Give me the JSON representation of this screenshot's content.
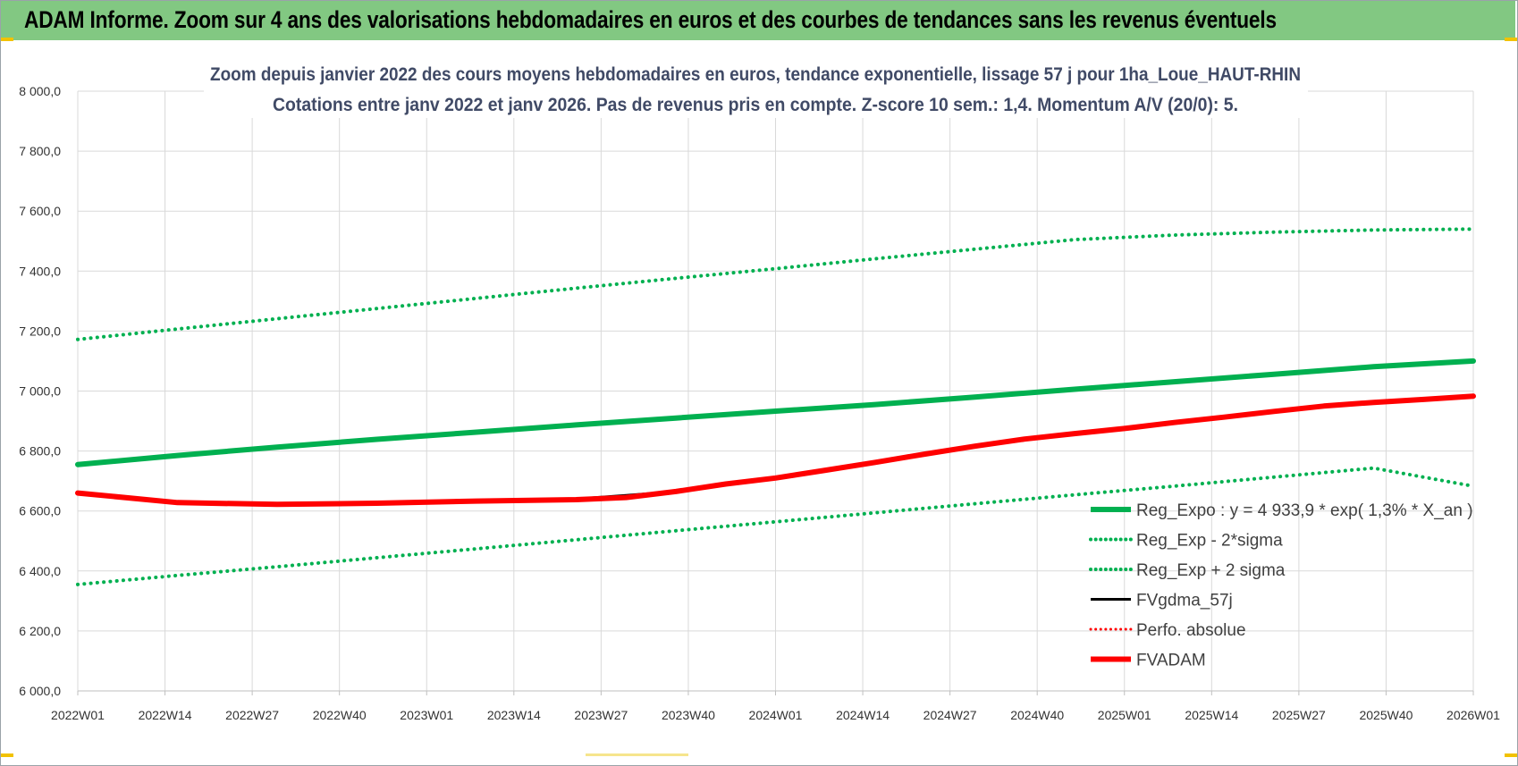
{
  "banner": {
    "title": "ADAM Informe. Zoom sur 4 ans des valorisations hebdomadaires en euros et des courbes de tendances sans les revenus éventuels"
  },
  "chart_data": {
    "type": "line",
    "title": "Zoom depuis janvier 2022 des cours moyens hebdomadaires en euros, tendance exponentielle, lissage 57 j pour 1ha_Loue_HAUT-RHIN",
    "subtitle": "Cotations entre janv 2022 et janv 2026. Pas de revenus pris en compte. Z-score 10 sem.: 1,4. Momentum A/V (20/0): 5.",
    "xlabel": "",
    "ylabel": "",
    "ylim": [
      6000,
      8000
    ],
    "y_ticks": [
      "6 000,0",
      "6 200,0",
      "6 400,0",
      "6 600,0",
      "6 800,0",
      "7 000,0",
      "7 200,0",
      "7 400,0",
      "7 600,0",
      "7 800,0",
      "8 000,0"
    ],
    "x_ticks": [
      "2022W01",
      "2022W14",
      "2022W27",
      "2022W40",
      "2023W01",
      "2023W14",
      "2023W27",
      "2023W40",
      "2024W01",
      "2024W14",
      "2024W27",
      "2024W40",
      "2025W01",
      "2025W14",
      "2025W27",
      "2025W40",
      "2026W01"
    ],
    "grid": true,
    "legend_position": "bottom-right",
    "series": [
      {
        "name": "Reg_Expo : y = 4 933,9 * exp( 1,3% * X_an )",
        "color": "#00b050",
        "style": "solid",
        "width": 6,
        "points": [
          [
            0,
            6755
          ],
          [
            4,
            6785
          ],
          [
            8,
            6813
          ],
          [
            12,
            6839
          ],
          [
            16,
            6863
          ],
          [
            20,
            6887
          ],
          [
            24,
            6910
          ],
          [
            28,
            6933
          ],
          [
            32,
            6955
          ],
          [
            36,
            6980
          ],
          [
            40,
            7006
          ],
          [
            44,
            7031
          ],
          [
            48,
            7056
          ],
          [
            52,
            7081
          ],
          [
            56,
            7100
          ]
        ]
      },
      {
        "name": "Reg_Exp - 2*sigma",
        "color": "#00b050",
        "style": "dotted",
        "width": 4,
        "points": [
          [
            0,
            6355
          ],
          [
            4,
            6385
          ],
          [
            8,
            6414
          ],
          [
            12,
            6444
          ],
          [
            16,
            6474
          ],
          [
            20,
            6504
          ],
          [
            24,
            6534
          ],
          [
            28,
            6564
          ],
          [
            32,
            6594
          ],
          [
            36,
            6624
          ],
          [
            40,
            6654
          ],
          [
            44,
            6683
          ],
          [
            48,
            6713
          ],
          [
            52,
            6743
          ],
          [
            56,
            6683
          ]
        ]
      },
      {
        "name": "Reg_Exp + 2 sigma",
        "color": "#00b050",
        "style": "dotted",
        "width": 4,
        "points": [
          [
            0,
            7172
          ],
          [
            4,
            7207
          ],
          [
            8,
            7241
          ],
          [
            12,
            7275
          ],
          [
            16,
            7309
          ],
          [
            20,
            7343
          ],
          [
            24,
            7376
          ],
          [
            28,
            7408
          ],
          [
            32,
            7441
          ],
          [
            36,
            7473
          ],
          [
            40,
            7505
          ],
          [
            44,
            7520
          ],
          [
            48,
            7530
          ],
          [
            52,
            7537
          ],
          [
            56,
            7540
          ]
        ]
      },
      {
        "name": "FVgdma_57j",
        "color": "#000000",
        "style": "solid",
        "width": 3,
        "points": [
          [
            0,
            6660
          ],
          [
            4,
            6628
          ],
          [
            8,
            6622
          ],
          [
            12,
            6626
          ],
          [
            16,
            6634
          ],
          [
            20,
            6640
          ],
          [
            22,
            6652
          ],
          [
            24,
            6665
          ],
          [
            26,
            6690
          ],
          [
            28,
            6710
          ],
          [
            30,
            6736
          ],
          [
            32,
            6762
          ],
          [
            34,
            6790
          ],
          [
            36,
            6816
          ],
          [
            38,
            6840
          ],
          [
            40,
            6858
          ],
          [
            42,
            6875
          ],
          [
            44,
            6895
          ],
          [
            46,
            6913
          ],
          [
            48,
            6932
          ],
          [
            50,
            6950
          ],
          [
            52,
            6962
          ],
          [
            54,
            6972
          ],
          [
            56,
            6983
          ]
        ]
      },
      {
        "name": "Perfo. absolue",
        "color": "#ff0000",
        "style": "dotted",
        "width": 3,
        "points": []
      },
      {
        "name": "FVADAM",
        "color": "#ff0000",
        "style": "solid",
        "width": 6,
        "points": [
          [
            0,
            6660
          ],
          [
            4,
            6628
          ],
          [
            8,
            6622
          ],
          [
            12,
            6626
          ],
          [
            16,
            6633
          ],
          [
            20,
            6638
          ],
          [
            22,
            6645
          ],
          [
            24,
            6665
          ],
          [
            26,
            6690
          ],
          [
            28,
            6710
          ],
          [
            30,
            6736
          ],
          [
            32,
            6762
          ],
          [
            34,
            6790
          ],
          [
            36,
            6816
          ],
          [
            38,
            6840
          ],
          [
            40,
            6858
          ],
          [
            42,
            6875
          ],
          [
            44,
            6895
          ],
          [
            46,
            6913
          ],
          [
            48,
            6932
          ],
          [
            50,
            6950
          ],
          [
            52,
            6962
          ],
          [
            54,
            6972
          ],
          [
            56,
            6983
          ]
        ]
      }
    ]
  }
}
